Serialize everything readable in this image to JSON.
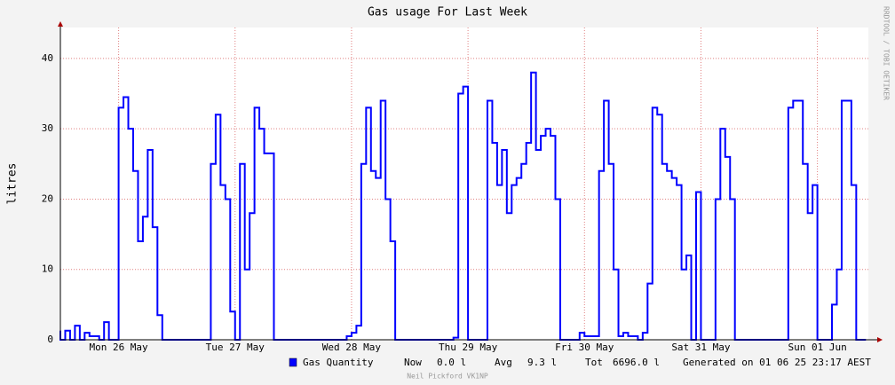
{
  "chart_data": {
    "type": "line",
    "title": "Gas usage For Last Week",
    "ylabel": "litres",
    "side_text": "RRDTOOL / TOBI OETIKER",
    "footer": "Neil Pickford VK1NP",
    "legend": {
      "now_label": "Now",
      "now": "0.0 l",
      "avg_label": "Avg",
      "avg": "9.3 l",
      "tot_label": "Tot",
      "tot": "6696.0 l",
      "generated": "Generated on 01 06 25 23:17 AEST"
    },
    "step": true,
    "grid": true,
    "xlim": [
      0,
      166.5
    ],
    "xticks": [
      {
        "value": 12,
        "label": "Mon 26 May"
      },
      {
        "value": 36,
        "label": "Tue 27 May"
      },
      {
        "value": 60,
        "label": "Wed 28 May"
      },
      {
        "value": 84,
        "label": "Thu 29 May"
      },
      {
        "value": 108,
        "label": "Fri 30 May"
      },
      {
        "value": 132,
        "label": "Sat 31 May"
      },
      {
        "value": 156,
        "label": "Sun 01 Jun"
      }
    ],
    "ylim": [
      0,
      44.4
    ],
    "yticks": [
      0,
      10,
      20,
      30,
      40
    ],
    "x": [
      0,
      1,
      2,
      3,
      4,
      5,
      6,
      7,
      8,
      9,
      10,
      11,
      12,
      13,
      14,
      15,
      16,
      17,
      18,
      19,
      20,
      21,
      22,
      23,
      24,
      25,
      26,
      27,
      28,
      29,
      30,
      31,
      32,
      33,
      34,
      35,
      36,
      37,
      38,
      39,
      40,
      41,
      42,
      43,
      44,
      45,
      46,
      47,
      48,
      49,
      50,
      51,
      52,
      53,
      54,
      55,
      56,
      57,
      58,
      59,
      60,
      61,
      62,
      63,
      64,
      65,
      66,
      67,
      68,
      69,
      70,
      71,
      72,
      73,
      74,
      75,
      76,
      77,
      78,
      79,
      80,
      81,
      82,
      83,
      84,
      85,
      86,
      87,
      88,
      89,
      90,
      91,
      92,
      93,
      94,
      95,
      96,
      97,
      98,
      99,
      100,
      101,
      102,
      103,
      104,
      105,
      106,
      107,
      108,
      109,
      110,
      111,
      112,
      113,
      114,
      115,
      116,
      117,
      118,
      119,
      120,
      121,
      122,
      123,
      124,
      125,
      126,
      127,
      128,
      129,
      130,
      131,
      132,
      133,
      134,
      135,
      136,
      137,
      138,
      139,
      140,
      141,
      142,
      143,
      144,
      145,
      146,
      147,
      148,
      149,
      150,
      151,
      152,
      153,
      154,
      155,
      156,
      157,
      158,
      159,
      160,
      161,
      162,
      163,
      164,
      165,
      166
    ],
    "series": [
      {
        "name": "Gas Quantity",
        "color": "#0000ff",
        "values": [
          1.3,
          0,
          1.3,
          0,
          2,
          0,
          1,
          0.5,
          0.5,
          0,
          2.5,
          0,
          0,
          33,
          34.5,
          30,
          24,
          14,
          17.5,
          27,
          16,
          3.5,
          0,
          0,
          0,
          0,
          0,
          0,
          0,
          0,
          0,
          0,
          25,
          32,
          22,
          20,
          4,
          0,
          25,
          10,
          18,
          33,
          30,
          26.5,
          26.5,
          0,
          0,
          0,
          0,
          0,
          0,
          0,
          0,
          0,
          0,
          0,
          0,
          0,
          0,
          0,
          0.5,
          1,
          2,
          25,
          33,
          24,
          23,
          34,
          20,
          14,
          0,
          0,
          0,
          0,
          0,
          0,
          0,
          0,
          0,
          0,
          0,
          0,
          0.3,
          35,
          36,
          0,
          0,
          0,
          0,
          34,
          28,
          22,
          27,
          18,
          22,
          23,
          25,
          28,
          38,
          27,
          29,
          30,
          29,
          20,
          0,
          0,
          0,
          0,
          1,
          0.5,
          0.5,
          0.5,
          24,
          34,
          25,
          10,
          0.5,
          1,
          0.5,
          0.5,
          0,
          1,
          8,
          33,
          32,
          25,
          24,
          23,
          22,
          10,
          12,
          0,
          21,
          0,
          0,
          0,
          20,
          30,
          26,
          20,
          0,
          0,
          0,
          0,
          0,
          0,
          0,
          0,
          0,
          0,
          0,
          33,
          34,
          34,
          25,
          18,
          22,
          0,
          0,
          0,
          5,
          10,
          34,
          34,
          22,
          0,
          0
        ]
      }
    ]
  }
}
